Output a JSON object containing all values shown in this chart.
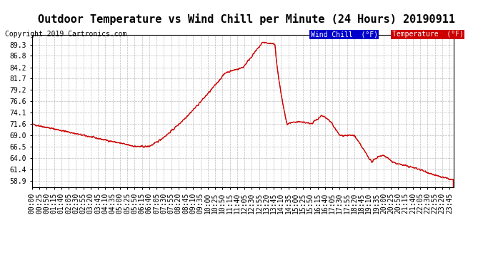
{
  "title": "Outdoor Temperature vs Wind Chill per Minute (24 Hours) 20190911",
  "copyright": "Copyright 2019 Cartronics.com",
  "legend_wind_chill": "Wind Chill  (°F)",
  "legend_temperature": "Temperature  (°F)",
  "line_color": "#cc0000",
  "legend_wc_bg": "#0000cc",
  "legend_temp_bg": "#cc0000",
  "background_color": "#ffffff",
  "grid_color": "#aaaaaa",
  "yticks": [
    58.9,
    61.4,
    64.0,
    66.5,
    69.0,
    71.6,
    74.1,
    76.6,
    79.2,
    81.7,
    84.2,
    86.8,
    89.3
  ],
  "ymin": 57.5,
  "ymax": 91.5,
  "title_fontsize": 11,
  "axis_fontsize": 7,
  "copyright_fontsize": 7
}
